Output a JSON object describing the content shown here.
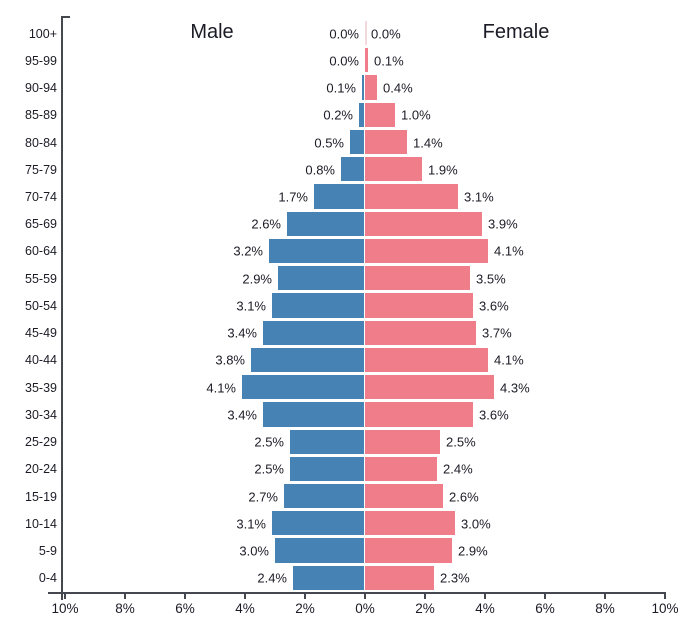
{
  "titles": {
    "male": "Male",
    "female": "Female"
  },
  "age_groups": [
    "100+",
    "95-99",
    "90-94",
    "85-89",
    "80-84",
    "75-79",
    "70-74",
    "65-69",
    "60-64",
    "55-59",
    "50-54",
    "45-49",
    "40-44",
    "35-39",
    "30-34",
    "25-29",
    "20-24",
    "15-19",
    "10-14",
    "5-9",
    "0-4"
  ],
  "male_labels": [
    "0.0%",
    "0.0%",
    "0.1%",
    "0.2%",
    "0.5%",
    "0.8%",
    "1.7%",
    "2.6%",
    "3.2%",
    "2.9%",
    "3.1%",
    "3.4%",
    "3.8%",
    "4.1%",
    "3.4%",
    "2.5%",
    "2.5%",
    "2.7%",
    "3.1%",
    "3.0%",
    "2.4%"
  ],
  "female_labels": [
    "0.0%",
    "0.1%",
    "0.4%",
    "1.0%",
    "1.4%",
    "1.9%",
    "3.1%",
    "3.9%",
    "4.1%",
    "3.5%",
    "3.6%",
    "3.7%",
    "4.1%",
    "4.3%",
    "3.6%",
    "2.5%",
    "2.4%",
    "2.6%",
    "3.0%",
    "2.9%",
    "2.3%"
  ],
  "x_axis": {
    "tick_labels": [
      "10%",
      "8%",
      "6%",
      "4%",
      "2%",
      "0%",
      "2%",
      "4%",
      "6%",
      "8%",
      "10%"
    ]
  },
  "colors": {
    "male_bar": "#4682B4",
    "female_bar": "#F07D8A",
    "axis": "#45494F",
    "text": "#1B1B26",
    "zero_hairline": "#F3D9DD"
  },
  "chart_data": {
    "type": "bar",
    "variant": "population-pyramid",
    "orientation": "horizontal",
    "title": "",
    "categories": [
      "100+",
      "95-99",
      "90-94",
      "85-89",
      "80-84",
      "75-79",
      "70-74",
      "65-69",
      "60-64",
      "55-59",
      "50-54",
      "45-49",
      "40-44",
      "35-39",
      "30-34",
      "25-29",
      "20-24",
      "15-19",
      "10-14",
      "5-9",
      "0-4"
    ],
    "series": [
      {
        "name": "Male",
        "side": "left",
        "values": [
          0.0,
          0.0,
          0.1,
          0.2,
          0.5,
          0.8,
          1.7,
          2.6,
          3.2,
          2.9,
          3.1,
          3.4,
          3.8,
          4.1,
          3.4,
          2.5,
          2.5,
          2.7,
          3.1,
          3.0,
          2.4
        ]
      },
      {
        "name": "Female",
        "side": "right",
        "values": [
          0.0,
          0.1,
          0.4,
          1.0,
          1.4,
          1.9,
          3.1,
          3.9,
          4.1,
          3.5,
          3.6,
          3.7,
          4.1,
          4.3,
          3.6,
          2.5,
          2.4,
          2.6,
          3.0,
          2.9,
          2.3
        ]
      }
    ],
    "unit": "%",
    "xlabel": "",
    "ylabel": "",
    "xlim": [
      -10,
      10
    ],
    "x_tick_step": 2,
    "x_tick_labels": [
      "10%",
      "8%",
      "6%",
      "4%",
      "2%",
      "0%",
      "2%",
      "4%",
      "6%",
      "8%",
      "10%"
    ],
    "grid": false,
    "legend_position": "titles-above-halves",
    "data_labels": true
  }
}
